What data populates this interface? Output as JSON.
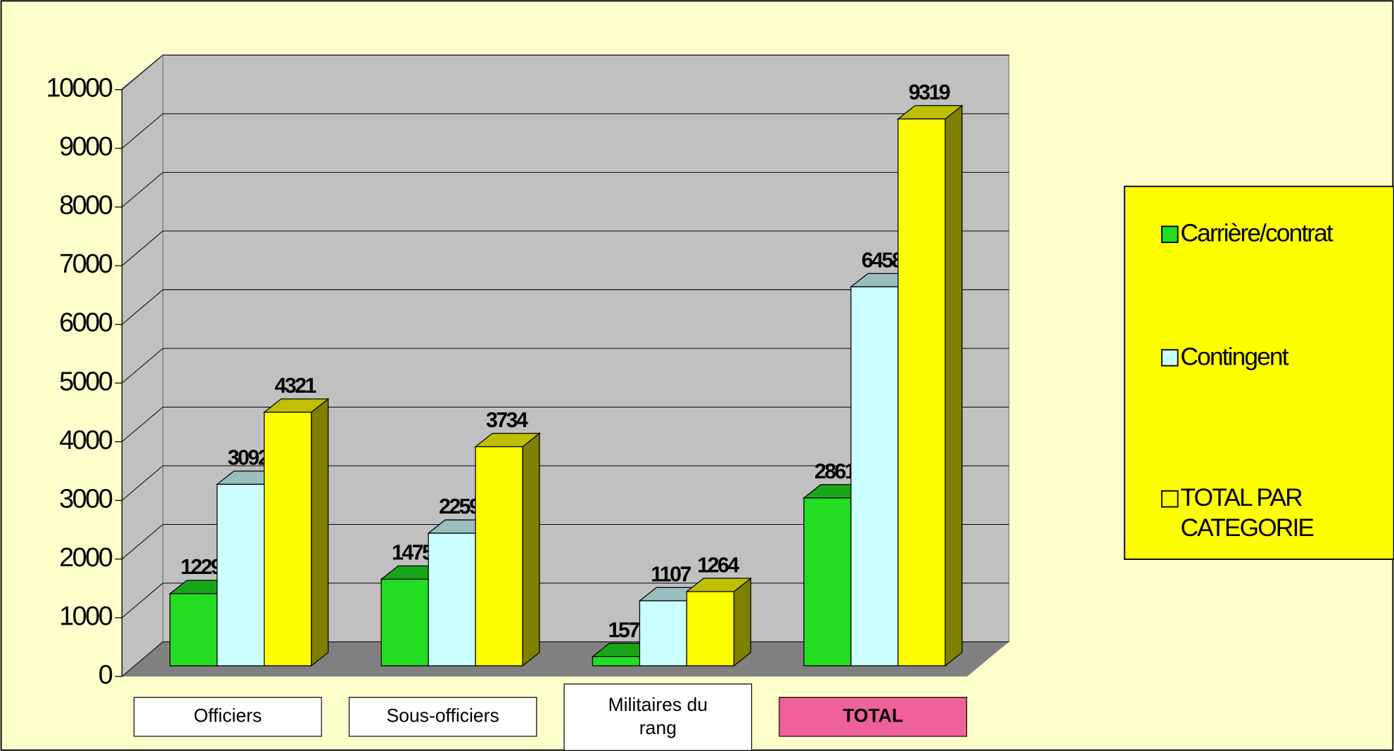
{
  "chart_data": {
    "type": "bar3d",
    "categories": [
      "Officiers",
      "Sous-officiers",
      "Militaires du rang",
      "TOTAL"
    ],
    "series": [
      {
        "name": "Carrière/contrat",
        "color": "#22dd22",
        "values": [
          1229,
          1475,
          157,
          2861
        ]
      },
      {
        "name": "Contingent",
        "color": "#ccffff",
        "values": [
          3092,
          2259,
          1107,
          6458
        ]
      },
      {
        "name": "TOTAL PAR CATEGORIE",
        "color": "#ffff00",
        "values": [
          4321,
          3734,
          1264,
          9319
        ]
      }
    ],
    "ylim": [
      0,
      10000
    ],
    "yticks": [
      0,
      1000,
      2000,
      3000,
      4000,
      5000,
      6000,
      7000,
      8000,
      9000,
      10000
    ],
    "grid": true,
    "legend": "right"
  }
}
